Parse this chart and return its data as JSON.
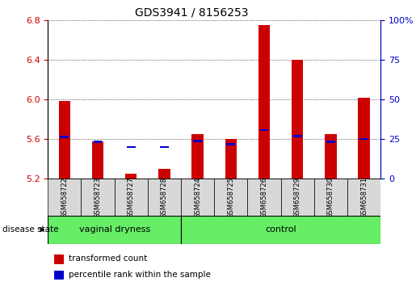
{
  "title": "GDS3941 / 8156253",
  "samples": [
    "GSM658722",
    "GSM658723",
    "GSM658727",
    "GSM658728",
    "GSM658724",
    "GSM658725",
    "GSM658726",
    "GSM658729",
    "GSM658730",
    "GSM658731"
  ],
  "red_values": [
    5.98,
    5.58,
    5.25,
    5.3,
    5.65,
    5.6,
    6.75,
    6.4,
    5.65,
    6.02
  ],
  "blue_values": [
    5.62,
    5.57,
    5.52,
    5.52,
    5.58,
    5.55,
    5.69,
    5.63,
    5.57,
    5.6
  ],
  "y_min": 5.2,
  "y_max": 6.8,
  "y_ticks": [
    5.2,
    5.6,
    6.0,
    6.4,
    6.8
  ],
  "right_y_ticks_pct": [
    0,
    25,
    50,
    75,
    100
  ],
  "right_y_labels": [
    "0",
    "25",
    "50",
    "75",
    "100%"
  ],
  "group_vd_label": "vaginal dryness",
  "group_ctrl_label": "control",
  "group_color": "#66ee66",
  "bar_width": 0.35,
  "red_color": "#cc0000",
  "blue_color": "#0000cc",
  "tick_color_left": "#cc0000",
  "tick_color_right": "#0000cc",
  "sample_bg": "#d8d8d8",
  "disease_state_label": "disease state",
  "legend_red": "transformed count",
  "legend_blue": "percentile rank within the sample",
  "title_fontsize": 10,
  "tick_fontsize": 8,
  "sample_fontsize": 6,
  "group_fontsize": 8,
  "legend_fontsize": 7.5
}
